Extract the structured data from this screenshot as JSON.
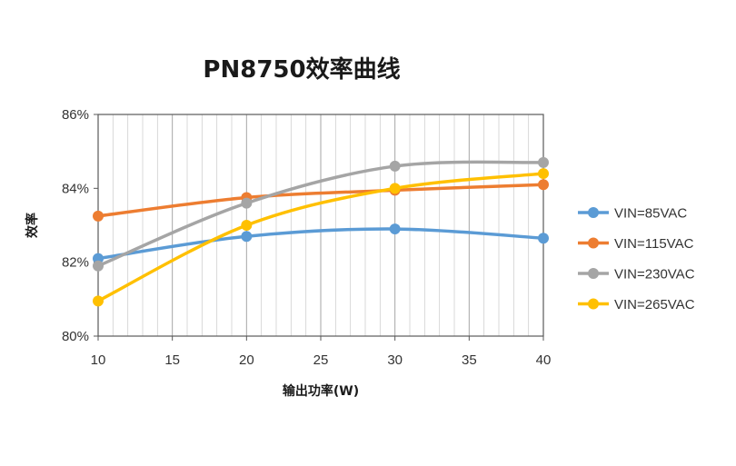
{
  "chart_data": {
    "type": "line",
    "title": "PN8750效率曲线",
    "xlabel": "输出功率(W)",
    "ylabel": "效率",
    "x": [
      10,
      20,
      30,
      40
    ],
    "xlim": [
      10,
      40
    ],
    "ylim": [
      80,
      86
    ],
    "x_ticks": [
      10,
      15,
      20,
      25,
      30,
      35,
      40
    ],
    "y_ticks": [
      80,
      82,
      84,
      86
    ],
    "y_tick_format": "%",
    "grid": {
      "vertical_major": true,
      "vertical_minor": true,
      "horizontal": false
    },
    "smooth": true,
    "legend_position": "right",
    "series": [
      {
        "name": "VIN=85VAC",
        "color": "#5b9bd5",
        "values": [
          82.1,
          82.7,
          82.9,
          82.65
        ]
      },
      {
        "name": "VIN=115VAC",
        "color": "#ed7d31",
        "values": [
          83.25,
          83.75,
          83.95,
          84.1
        ]
      },
      {
        "name": "VIN=230VAC",
        "color": "#a5a5a5",
        "values": [
          81.9,
          83.6,
          84.6,
          84.7
        ]
      },
      {
        "name": "VIN=265VAC",
        "color": "#ffc000",
        "values": [
          80.95,
          83.0,
          84.0,
          84.4
        ]
      }
    ]
  }
}
